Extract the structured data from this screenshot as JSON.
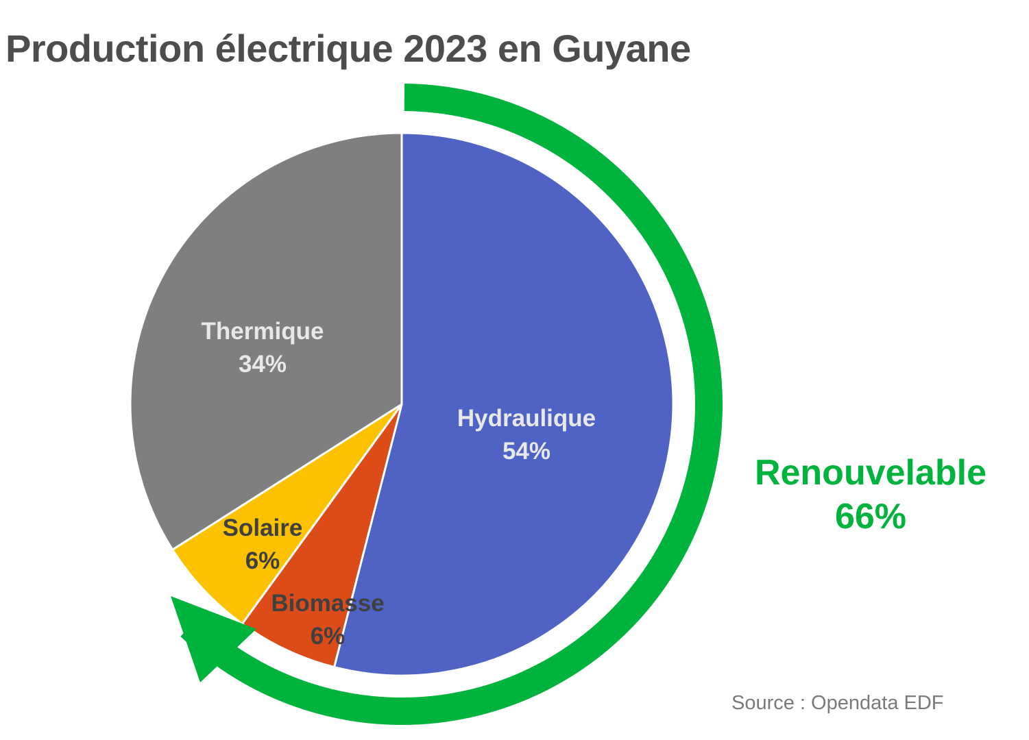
{
  "chart_data": {
    "type": "pie",
    "title": "Production électrique 2023 en Guyane",
    "source": "Source : Opendata EDF",
    "slices": [
      {
        "name": "Hydraulique",
        "label": "Hydraulique",
        "pct_label": "54%",
        "value": 54,
        "color": "#4f63c4",
        "text_color": "#e8e8e8"
      },
      {
        "name": "Biomasse",
        "label": "Biomasse",
        "pct_label": "6%",
        "value": 6,
        "color": "#dc4c18",
        "text_color": "#404040"
      },
      {
        "name": "Solaire",
        "label": "Solaire",
        "pct_label": "6%",
        "value": 6,
        "color": "#fcc200",
        "text_color": "#404040"
      },
      {
        "name": "Thermique",
        "label": "Thermique",
        "pct_label": "34%",
        "value": 34,
        "color": "#7f7f7f",
        "text_color": "#e8e8e8"
      }
    ],
    "annotation": {
      "label": "Renouvelable",
      "value_label": "66%",
      "value": 66,
      "color": "#00b33c"
    }
  }
}
